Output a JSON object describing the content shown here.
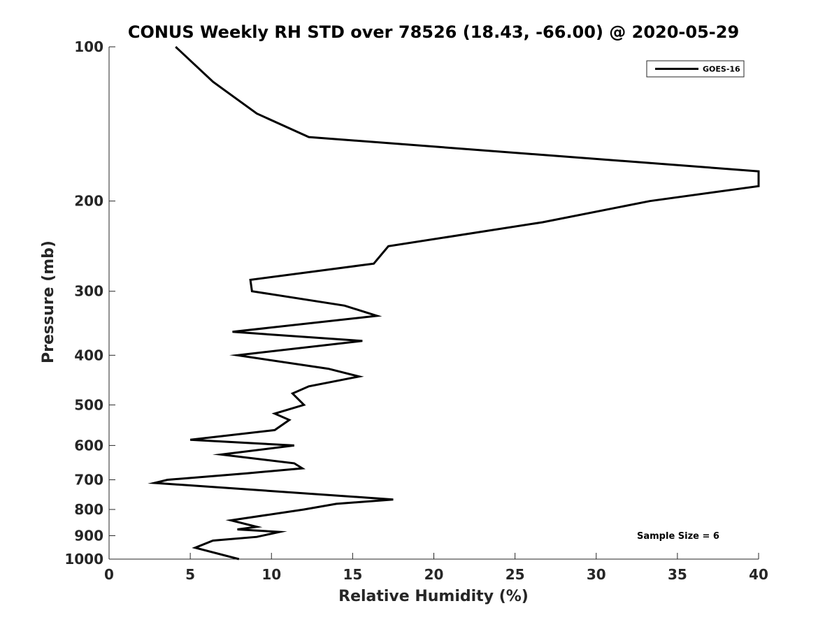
{
  "chart_data": {
    "type": "line",
    "title": "CONUS Weekly RH STD over 78526 (18.43, -66.00) @ 2020-05-29",
    "xlabel": "Relative Humidity (%)",
    "ylabel": "Pressure (mb)",
    "xlim": [
      0,
      40
    ],
    "ylim": [
      100,
      1000
    ],
    "yscale": "log",
    "y_reversed": true,
    "grid": false,
    "legend_position": "top-right",
    "x_ticks": [
      0,
      5,
      10,
      15,
      20,
      25,
      30,
      35,
      40
    ],
    "y_ticks": [
      100,
      200,
      300,
      400,
      500,
      600,
      700,
      800,
      900,
      1000
    ],
    "annotation": "Sample Size = 6",
    "series": [
      {
        "name": "GOES-16",
        "color": "#000000",
        "points": [
          [
            4.1,
            100
          ],
          [
            6.4,
            117
          ],
          [
            9.1,
            135
          ],
          [
            12.3,
            150
          ],
          [
            40.0,
            175
          ],
          [
            40.0,
            187
          ],
          [
            33.3,
            200
          ],
          [
            26.7,
            220
          ],
          [
            17.2,
            245
          ],
          [
            16.3,
            265
          ],
          [
            8.7,
            285
          ],
          [
            8.8,
            300
          ],
          [
            14.5,
            320
          ],
          [
            16.5,
            335
          ],
          [
            7.6,
            360
          ],
          [
            15.6,
            375
          ],
          [
            7.9,
            400
          ],
          [
            13.5,
            425
          ],
          [
            15.4,
            440
          ],
          [
            12.3,
            460
          ],
          [
            11.3,
            475
          ],
          [
            12.0,
            500
          ],
          [
            10.2,
            520
          ],
          [
            11.1,
            535
          ],
          [
            10.2,
            560
          ],
          [
            5.0,
            585
          ],
          [
            11.4,
            600
          ],
          [
            6.9,
            625
          ],
          [
            11.4,
            650
          ],
          [
            11.9,
            665
          ],
          [
            8.5,
            680
          ],
          [
            3.6,
            700
          ],
          [
            2.8,
            710
          ],
          [
            17.5,
            765
          ],
          [
            14.0,
            780
          ],
          [
            12.0,
            800
          ],
          [
            7.5,
            840
          ],
          [
            9.1,
            865
          ],
          [
            7.9,
            875
          ],
          [
            10.5,
            885
          ],
          [
            9.1,
            905
          ],
          [
            6.4,
            920
          ],
          [
            5.3,
            950
          ],
          [
            8.0,
            1000
          ]
        ]
      }
    ]
  }
}
